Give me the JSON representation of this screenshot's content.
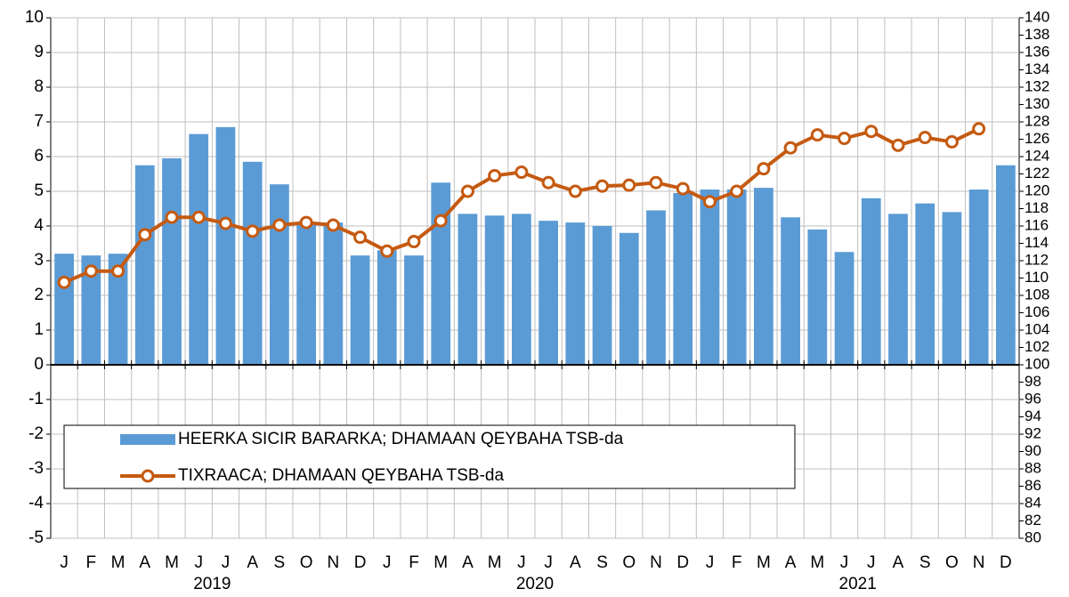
{
  "chart_data": {
    "type": "bar_line",
    "categories": [
      "J",
      "F",
      "M",
      "A",
      "M",
      "J",
      "J",
      "A",
      "S",
      "O",
      "N",
      "D",
      "J",
      "F",
      "M",
      "A",
      "M",
      "J",
      "J",
      "A",
      "S",
      "O",
      "N",
      "D",
      "J",
      "F",
      "M",
      "A",
      "M",
      "J",
      "J",
      "A",
      "S",
      "O",
      "N",
      "D"
    ],
    "year_labels": [
      "2019",
      "2020",
      "2021"
    ],
    "series": [
      {
        "name": "HEERKA SICIR BARARKA; DHAMAAN QEYBAHA TSB-da",
        "type": "bar",
        "color": "#5b9bd5",
        "values": [
          3.2,
          3.15,
          3.2,
          5.75,
          5.95,
          6.65,
          6.85,
          5.85,
          5.2,
          4.1,
          4.1,
          3.15,
          3.3,
          3.15,
          5.25,
          4.35,
          4.3,
          4.35,
          4.15,
          4.1,
          4.0,
          3.8,
          4.45,
          4.95,
          5.05,
          5.05,
          5.1,
          4.25,
          3.9,
          3.25,
          4.8,
          4.35,
          4.65,
          4.4,
          5.05,
          5.75
        ]
      },
      {
        "name": "TIXRAACA; DHAMAAN QEYBAHA TSB-da",
        "type": "line",
        "axis": "y2",
        "color": "#c55a11",
        "values": [
          109.5,
          110.8,
          110.8,
          115,
          117,
          117,
          116.3,
          115.4,
          116.1,
          116.4,
          116.1,
          114.7,
          113.1,
          114.2,
          116.6,
          120,
          121.8,
          122.2,
          121,
          120,
          120.6,
          120.7,
          121,
          120.3,
          118.8,
          120,
          122.6,
          125,
          126.5,
          126.1,
          126.9,
          125.3,
          126.2,
          125.7,
          127.2,
          null
        ]
      }
    ],
    "ylim": [
      -5,
      10
    ],
    "yticks": [
      -5,
      -4,
      -3,
      -2,
      -1,
      0,
      1,
      2,
      3,
      4,
      5,
      6,
      7,
      8,
      9,
      10
    ],
    "y2lim": [
      80,
      140
    ],
    "y2ticks": [
      80,
      82,
      84,
      86,
      88,
      90,
      92,
      94,
      96,
      98,
      100,
      102,
      104,
      106,
      108,
      110,
      112,
      114,
      116,
      118,
      120,
      122,
      124,
      126,
      128,
      130,
      132,
      134,
      136,
      138,
      140
    ],
    "grid": true
  }
}
